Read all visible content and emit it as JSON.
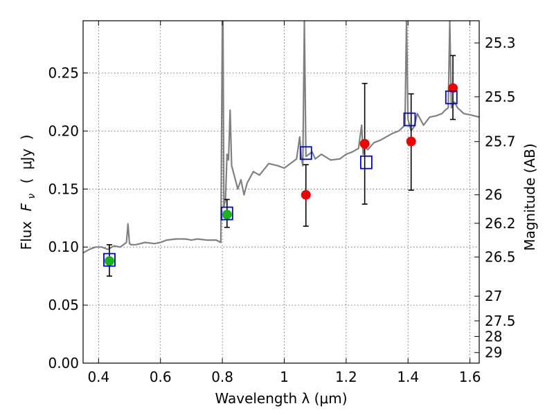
{
  "chart_data": {
    "type": "scatter",
    "xlabel": "Wavelength  λ (μm)",
    "ylabel_left": [
      "Flux",
      "F",
      "ν",
      "(",
      "μJy",
      ")"
    ],
    "ylabel_right": "Magnitude (AB)",
    "xlim": [
      0.35,
      1.63
    ],
    "ylim": [
      0.0,
      0.295
    ],
    "grid": true,
    "x_ticks": [
      0.4,
      0.6,
      0.8,
      1.0,
      1.2,
      1.4,
      1.6
    ],
    "x_tick_labels": [
      "0.4",
      "0.6",
      "0.8",
      "1",
      "1.2",
      "1.4",
      "1.6"
    ],
    "y_ticks": [
      0.0,
      0.05,
      0.1,
      0.15,
      0.2,
      0.25
    ],
    "y_tick_labels": [
      "0.00",
      "0.05",
      "0.10",
      "0.15",
      "0.20",
      "0.25"
    ],
    "right_ticks": [
      {
        "label": "25.3",
        "flux": 0.2759
      },
      {
        "label": "25.5",
        "flux": 0.2295
      },
      {
        "label": "25.7",
        "flux": 0.1909
      },
      {
        "label": "26",
        "flux": 0.145
      },
      {
        "label": "26.2",
        "flux": 0.1205
      },
      {
        "label": "26.5",
        "flux": 0.0914
      },
      {
        "label": "27",
        "flux": 0.0577
      },
      {
        "label": "27.5",
        "flux": 0.0364
      },
      {
        "label": "28",
        "flux": 0.023
      },
      {
        "label": "29",
        "flux": 0.0091
      }
    ],
    "colors": {
      "model": "#808080",
      "green_points": "#1fb01f",
      "red_points": "#ee0000",
      "squares": "#0000cc",
      "errorbars": "#000000",
      "grid": "#555555"
    },
    "series": [
      {
        "kind": "model_spectrum",
        "x": [
          0.35,
          0.37,
          0.39,
          0.41,
          0.43,
          0.45,
          0.47,
          0.49,
          0.495,
          0.5,
          0.505,
          0.52,
          0.55,
          0.58,
          0.6,
          0.62,
          0.65,
          0.68,
          0.7,
          0.72,
          0.75,
          0.78,
          0.795,
          0.8,
          0.802,
          0.805,
          0.81,
          0.815,
          0.82,
          0.825,
          0.83,
          0.84,
          0.85,
          0.86,
          0.87,
          0.88,
          0.9,
          0.92,
          0.95,
          0.98,
          1.0,
          1.02,
          1.04,
          1.05,
          1.055,
          1.06,
          1.065,
          1.07,
          1.09,
          1.1,
          1.12,
          1.15,
          1.18,
          1.2,
          1.22,
          1.24,
          1.25,
          1.255,
          1.26,
          1.27,
          1.29,
          1.31,
          1.33,
          1.35,
          1.37,
          1.39,
          1.395,
          1.4,
          1.41,
          1.42,
          1.43,
          1.45,
          1.47,
          1.49,
          1.51,
          1.52,
          1.53,
          1.535,
          1.54,
          1.55,
          1.56,
          1.58,
          1.6,
          1.63
        ],
        "y": [
          0.095,
          0.098,
          0.1,
          0.1,
          0.098,
          0.101,
          0.1,
          0.104,
          0.12,
          0.103,
          0.102,
          0.102,
          0.104,
          0.103,
          0.104,
          0.106,
          0.107,
          0.107,
          0.106,
          0.107,
          0.106,
          0.106,
          0.104,
          0.295,
          0.295,
          0.135,
          0.14,
          0.18,
          0.175,
          0.218,
          0.17,
          0.16,
          0.15,
          0.158,
          0.145,
          0.155,
          0.165,
          0.162,
          0.172,
          0.17,
          0.168,
          0.172,
          0.176,
          0.195,
          0.178,
          0.17,
          0.295,
          0.178,
          0.182,
          0.176,
          0.18,
          0.175,
          0.176,
          0.18,
          0.182,
          0.185,
          0.205,
          0.18,
          0.186,
          0.184,
          0.19,
          0.192,
          0.195,
          0.198,
          0.2,
          0.205,
          0.295,
          0.21,
          0.2,
          0.204,
          0.215,
          0.205,
          0.212,
          0.213,
          0.215,
          0.218,
          0.22,
          0.295,
          0.22,
          0.225,
          0.22,
          0.215,
          0.214,
          0.212
        ]
      },
      {
        "kind": "observed_green",
        "x": [
          0.435,
          0.815
        ],
        "y": [
          0.088,
          0.128
        ]
      },
      {
        "kind": "observed_red",
        "x": [
          1.07,
          1.26,
          1.41,
          1.545
        ],
        "y": [
          0.145,
          0.189,
          0.191,
          0.237
        ]
      },
      {
        "kind": "model_bandpass_squares",
        "x": [
          0.435,
          0.815,
          1.07,
          1.265,
          1.405,
          1.54
        ],
        "y": [
          0.089,
          0.129,
          0.181,
          0.173,
          0.21,
          0.229
        ]
      },
      {
        "kind": "errorbars",
        "x": [
          0.435,
          0.815,
          1.07,
          1.26,
          1.41,
          1.545
        ],
        "low": [
          0.075,
          0.117,
          0.118,
          0.137,
          0.149,
          0.21
        ],
        "high": [
          0.102,
          0.141,
          0.171,
          0.241,
          0.232,
          0.265
        ]
      }
    ]
  }
}
